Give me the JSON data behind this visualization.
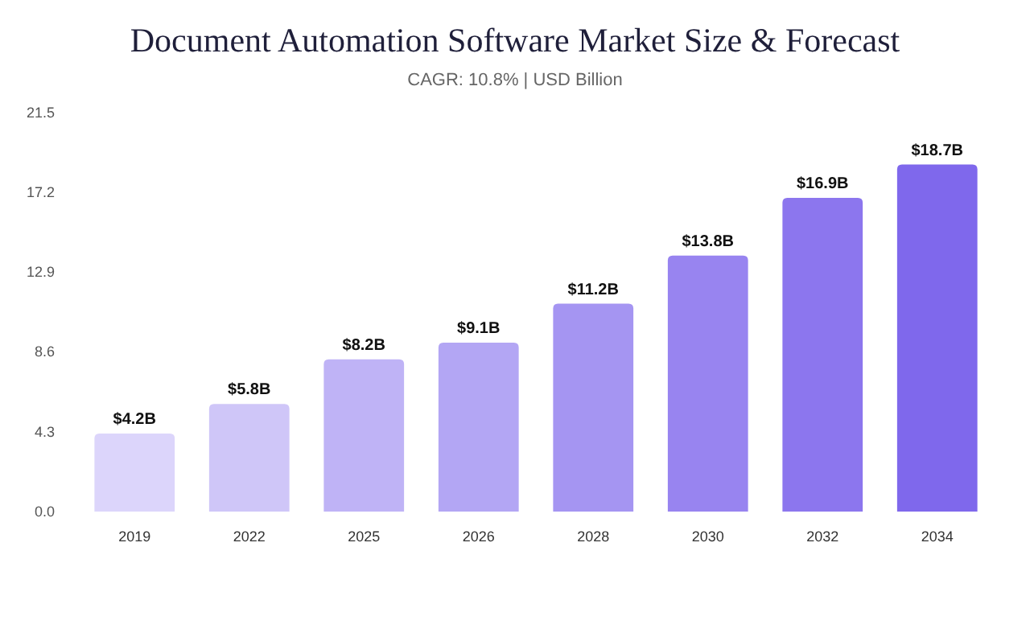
{
  "chart_data": {
    "type": "bar",
    "title": "Document Automation Software Market Size & Forecast",
    "subtitle": "CAGR: 10.8% | USD Billion",
    "categories": [
      "2019",
      "2022",
      "2025",
      "2026",
      "2028",
      "2030",
      "2032",
      "2034"
    ],
    "values": [
      4.2,
      5.8,
      8.2,
      9.1,
      11.2,
      13.8,
      16.9,
      18.7
    ],
    "value_labels": [
      "$4.2B",
      "$5.8B",
      "$8.2B",
      "$9.1B",
      "$11.2B",
      "$13.8B",
      "$16.9B",
      "$18.7B"
    ],
    "colors": [
      "#dcd5fb",
      "#cfc6f8",
      "#bfb3f6",
      "#b3a6f4",
      "#a595f2",
      "#9884f0",
      "#8c76ee",
      "#7f68ec"
    ],
    "ylim": [
      0,
      21.5
    ],
    "yticks": [
      {
        "value": 0,
        "label": "0.0"
      },
      {
        "value": 4.3,
        "label": "4.3"
      },
      {
        "value": 8.6,
        "label": "8.6"
      },
      {
        "value": 12.9,
        "label": "12.9"
      },
      {
        "value": 17.2,
        "label": "17.2"
      },
      {
        "value": 21.5,
        "label": "21.5"
      }
    ]
  }
}
